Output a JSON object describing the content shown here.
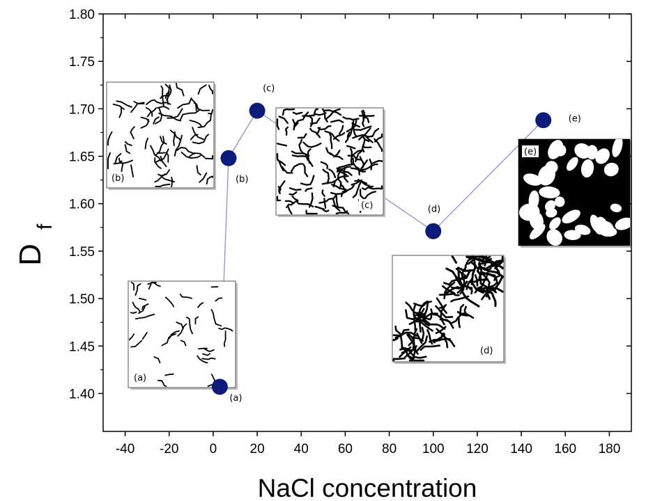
{
  "chart_data": {
    "type": "scatter",
    "xlabel": "NaCl concentration",
    "ylabel": "D",
    "ylabel_subscript": "f",
    "xlim": [
      -50,
      190
    ],
    "ylim": [
      1.36,
      1.8
    ],
    "xticks": [
      -40,
      -20,
      0,
      20,
      40,
      60,
      80,
      100,
      120,
      140,
      160,
      180
    ],
    "xtick_labels": [
      "-40",
      "-20",
      "0",
      "20",
      "40",
      "60",
      "80",
      "100",
      "120",
      "140",
      "160",
      "180"
    ],
    "yticks": [
      1.4,
      1.45,
      1.5,
      1.55,
      1.6,
      1.65,
      1.7,
      1.75,
      1.8
    ],
    "ytick_labels": [
      "1.40",
      "1.45",
      "1.50",
      "1.55",
      "1.60",
      "1.65",
      "1.70",
      "1.75",
      "1.80"
    ],
    "grid": false,
    "point_color": "#0d1b7a",
    "line_color": "#8a8fd6",
    "points": [
      {
        "label": "(a)",
        "x": 3,
        "y": 1.407
      },
      {
        "label": "(b)",
        "x": 7,
        "y": 1.648
      },
      {
        "label": "(c)",
        "x": 20,
        "y": 1.698
      },
      {
        "label": "(d)",
        "x": 100,
        "y": 1.571
      },
      {
        "label": "(e)",
        "x": 150,
        "y": 1.688
      }
    ],
    "insets": [
      {
        "label": "(a)",
        "style": "sparse"
      },
      {
        "label": "(b)",
        "style": "branched"
      },
      {
        "label": "(c)",
        "style": "dense"
      },
      {
        "label": "(d)",
        "style": "network-diagonal"
      },
      {
        "label": "(e)",
        "style": "thick-network"
      }
    ]
  }
}
